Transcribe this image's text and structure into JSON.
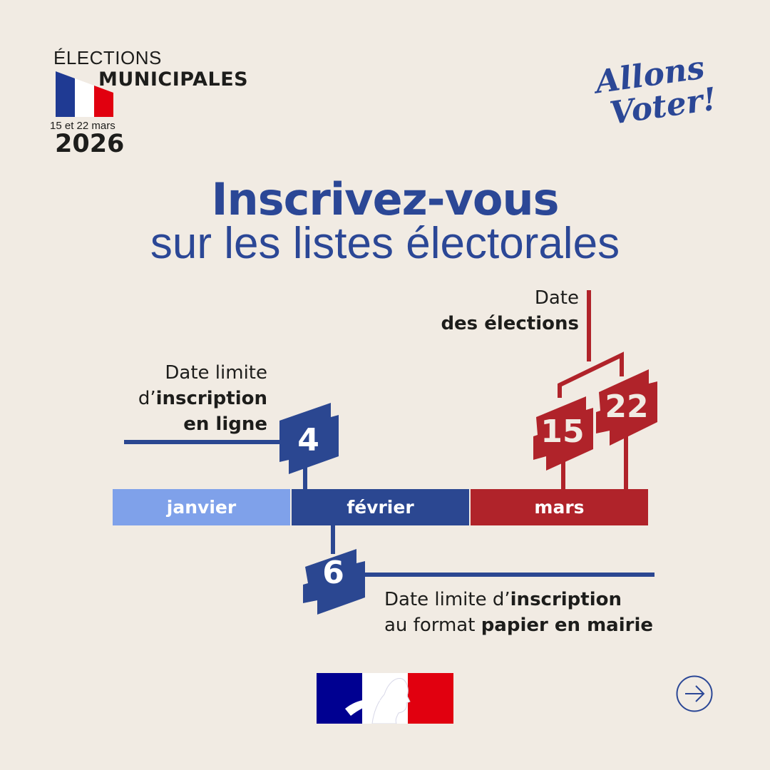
{
  "header": {
    "line1": "ÉLECTIONS",
    "line2": "MUNICIPALES",
    "dates": "15 et 22 mars",
    "year": "2026",
    "flag_colors": [
      "#1f3a93",
      "#ffffff",
      "#e1000f"
    ]
  },
  "slogan": {
    "line1": "Allons",
    "line2": "Voter!"
  },
  "title": "Inscrivez-vous",
  "subtitle": "sur les listes électorales",
  "timeline": {
    "months": [
      {
        "label": "janvier",
        "color": "#7fa1ea"
      },
      {
        "label": "février",
        "color": "#2b4791"
      },
      {
        "label": "mars",
        "color": "#b0232a"
      }
    ],
    "online_deadline": {
      "day": "4",
      "label_1": "Date limite",
      "label_2_prefix": "d’",
      "label_2_bold": "inscription",
      "label_3_bold": "en ligne"
    },
    "paper_deadline": {
      "day": "6",
      "label_1_prefix": "Date limite d’",
      "label_1_bold": "inscription",
      "label_2_prefix": "au format ",
      "label_2_bold": "papier en mairie"
    },
    "election": {
      "day1": "15",
      "day2": "22",
      "label_1": "Date",
      "label_2_bold": "des élections"
    }
  },
  "footer": {
    "next_icon": "arrow-right-circle-icon",
    "logo": "marianne-logo"
  }
}
